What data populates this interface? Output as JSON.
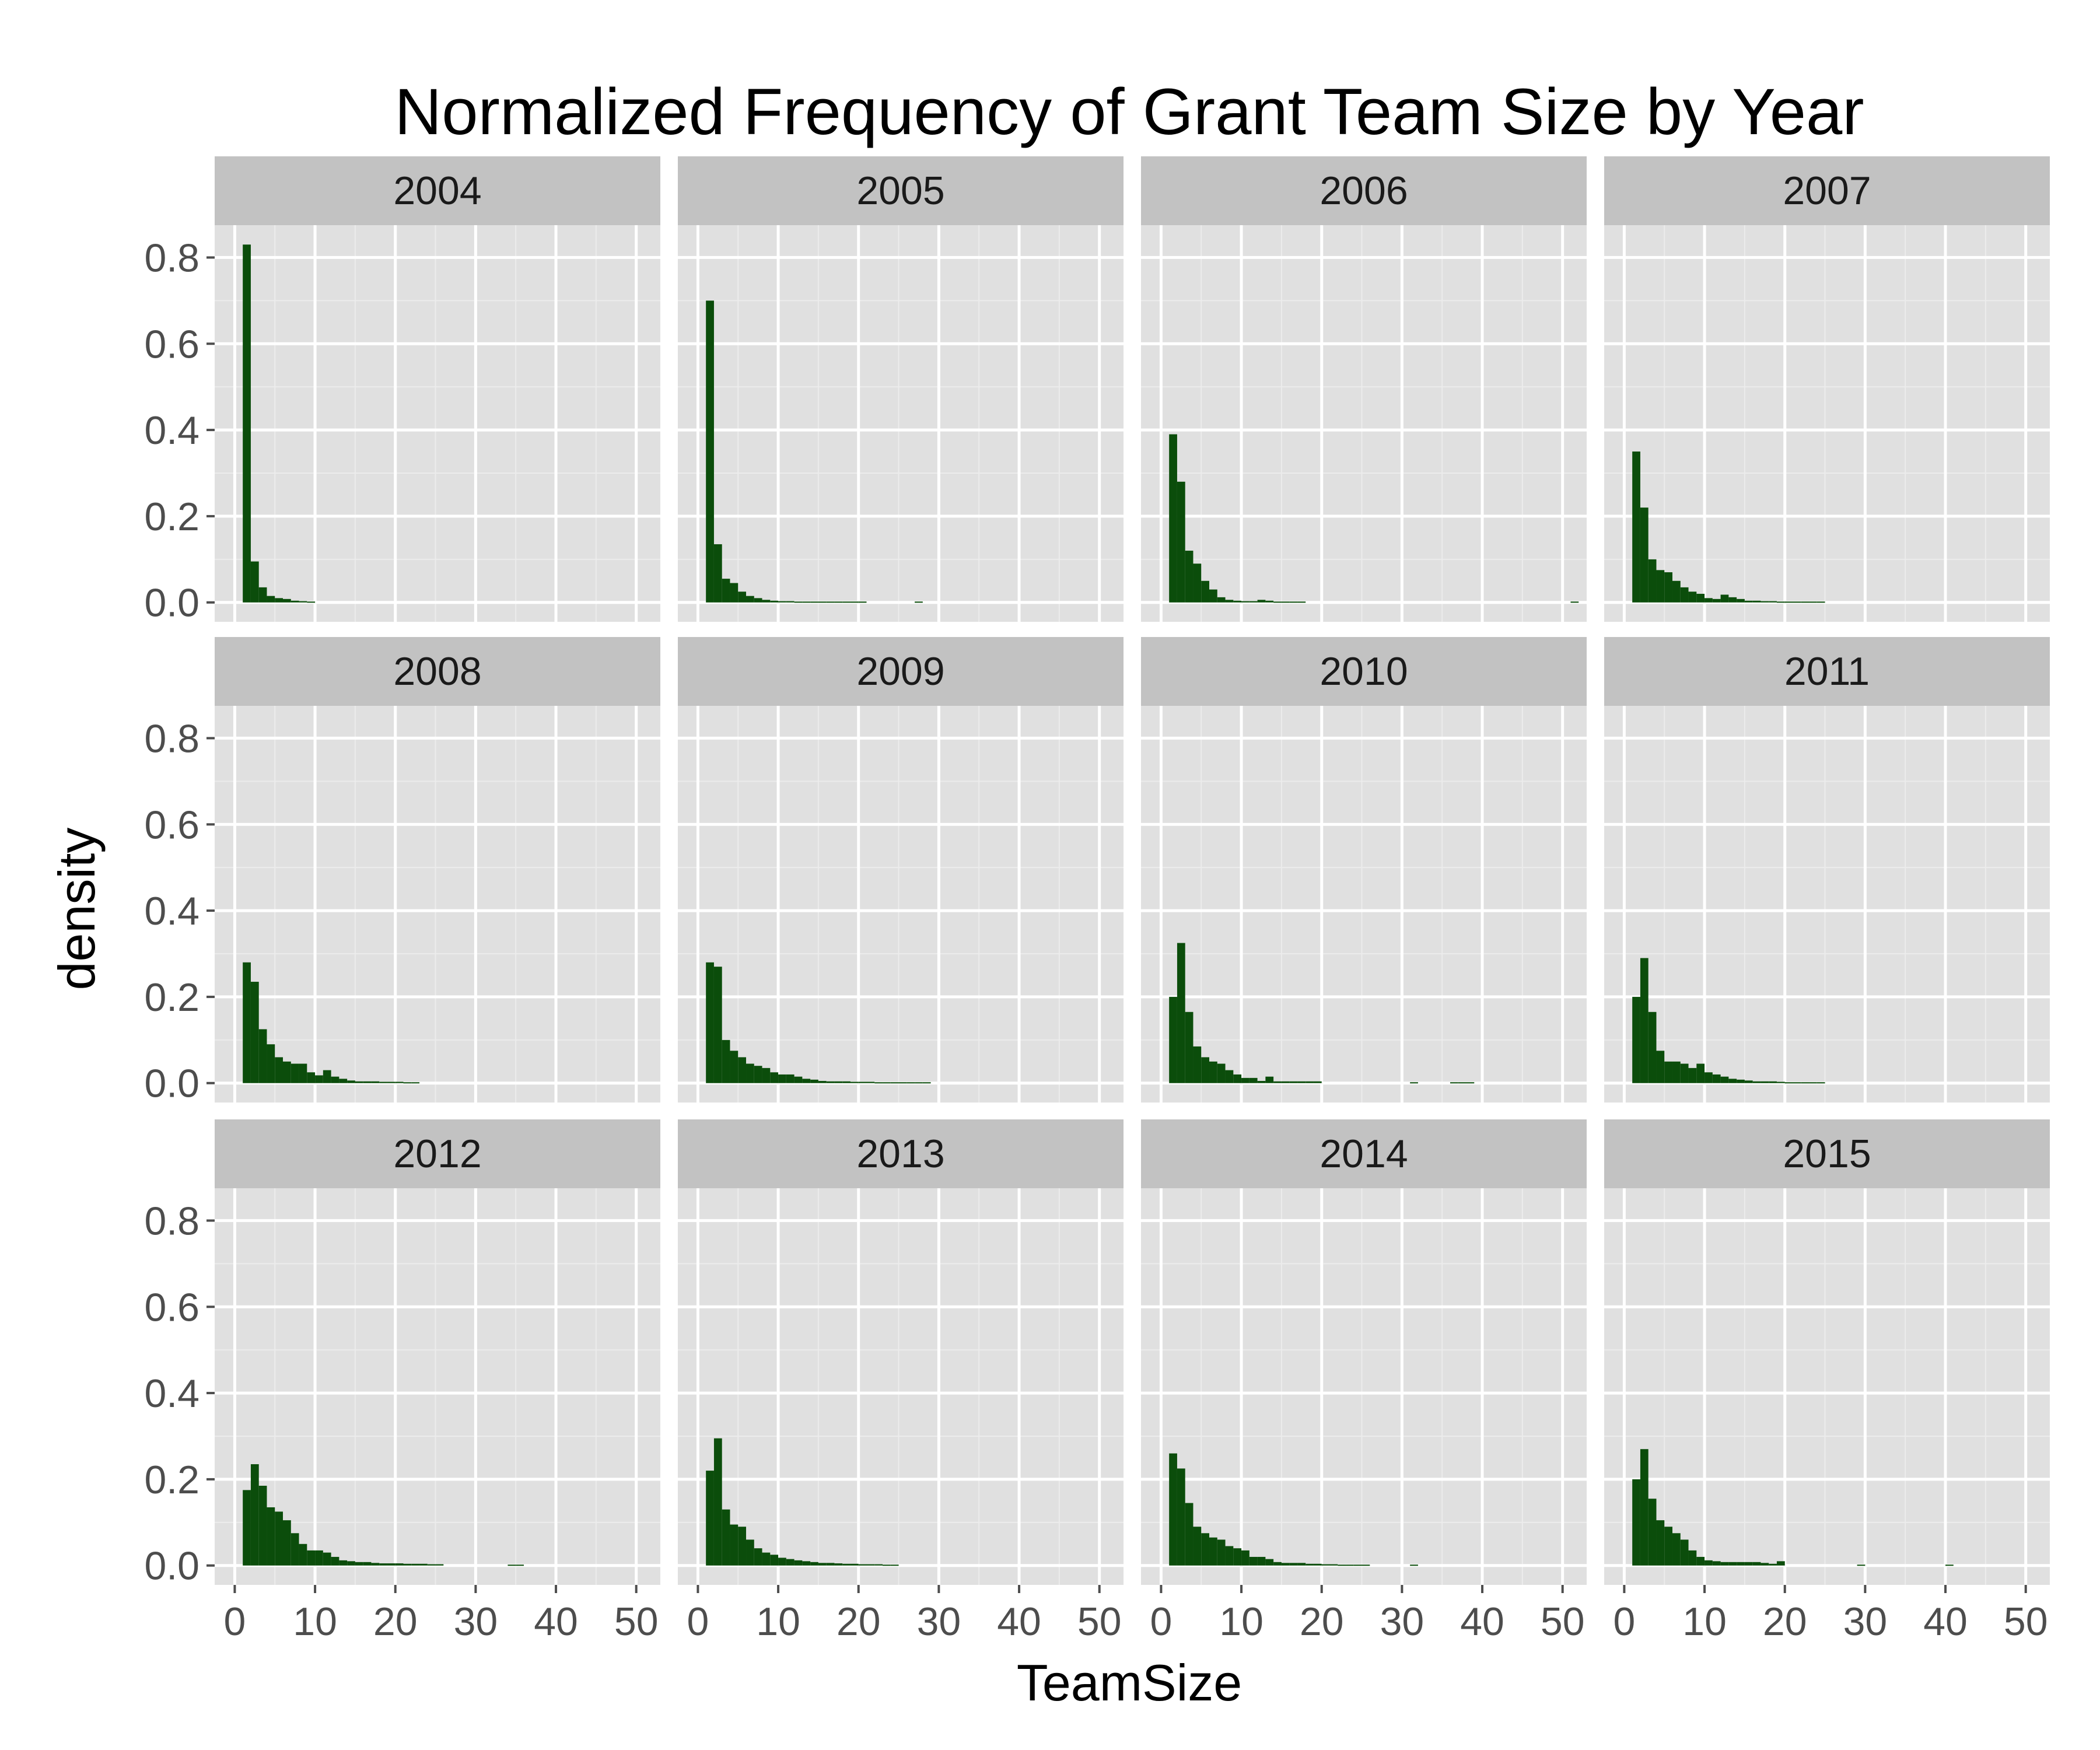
{
  "chart_data": {
    "type": "bar",
    "title": "Normalized Frequency of Grant Team Size by Year",
    "xlabel": "TeamSize",
    "ylabel": "density",
    "xlim": [
      -2.5,
      53
    ],
    "ylim": [
      -0.045,
      0.875
    ],
    "x_ticks": [
      0,
      10,
      20,
      30,
      40,
      50
    ],
    "y_ticks": [
      0.0,
      0.2,
      0.4,
      0.6,
      0.8
    ],
    "y_tick_labels": [
      "0.0",
      "0.2",
      "0.4",
      "0.6",
      "0.8"
    ],
    "bin_width": 1,
    "bin_start": 1,
    "grid": true,
    "panel_background": "#e0e0e0",
    "strip_background": "#c2c2c2",
    "bar_color": "#0b4d0b",
    "layout": {
      "rows": 3,
      "cols": 4
    },
    "panels": [
      {
        "year": "2004",
        "values": [
          0.83,
          0.095,
          0.035,
          0.015,
          0.01,
          0.008,
          0.004,
          0.003,
          0.002
        ]
      },
      {
        "year": "2005",
        "values": [
          0.7,
          0.135,
          0.055,
          0.045,
          0.025,
          0.015,
          0.01,
          0.006,
          0.004,
          0.003,
          0.003,
          0.002,
          0.002,
          0.002,
          0.002,
          0.002,
          0.002,
          0.002,
          0.002,
          0.002,
          0.0,
          0.0,
          0.0,
          0.0,
          0.0,
          0.0,
          0.002
        ]
      },
      {
        "year": "2006",
        "values": [
          0.39,
          0.28,
          0.12,
          0.09,
          0.05,
          0.03,
          0.012,
          0.006,
          0.004,
          0.003,
          0.003,
          0.006,
          0.004,
          0.002,
          0.002,
          0.002,
          0.002,
          0.0,
          0.0,
          0.0,
          0.0,
          0.0,
          0.0,
          0.0,
          0.0,
          0.0,
          0.0,
          0.0,
          0.0,
          0.0,
          0.0,
          0.0,
          0.0,
          0.0,
          0.0,
          0.0,
          0.0,
          0.0,
          0.0,
          0.0,
          0.0,
          0.0,
          0.0,
          0.0,
          0.0,
          0.0,
          0.0,
          0.0,
          0.0,
          0.0,
          0.002
        ]
      },
      {
        "year": "2007",
        "values": [
          0.35,
          0.22,
          0.1,
          0.075,
          0.07,
          0.05,
          0.035,
          0.025,
          0.02,
          0.01,
          0.008,
          0.018,
          0.012,
          0.008,
          0.004,
          0.004,
          0.003,
          0.003,
          0.002,
          0.002,
          0.002,
          0.002,
          0.002,
          0.002
        ]
      },
      {
        "year": "2008",
        "values": [
          0.28,
          0.235,
          0.125,
          0.09,
          0.06,
          0.05,
          0.045,
          0.045,
          0.025,
          0.018,
          0.03,
          0.015,
          0.01,
          0.006,
          0.004,
          0.004,
          0.004,
          0.003,
          0.003,
          0.003,
          0.002,
          0.002
        ]
      },
      {
        "year": "2009",
        "values": [
          0.28,
          0.27,
          0.1,
          0.075,
          0.06,
          0.045,
          0.04,
          0.035,
          0.025,
          0.02,
          0.02,
          0.015,
          0.01,
          0.008,
          0.005,
          0.004,
          0.004,
          0.004,
          0.003,
          0.003,
          0.003,
          0.002,
          0.002,
          0.002,
          0.002,
          0.002,
          0.002,
          0.002
        ]
      },
      {
        "year": "2010",
        "values": [
          0.2,
          0.325,
          0.165,
          0.085,
          0.06,
          0.05,
          0.045,
          0.03,
          0.02,
          0.012,
          0.012,
          0.005,
          0.015,
          0.004,
          0.004,
          0.004,
          0.004,
          0.004,
          0.004,
          0.0,
          0.0,
          0.0,
          0.0,
          0.0,
          0.0,
          0.0,
          0.0,
          0.0,
          0.0,
          0.0,
          0.002,
          0.0,
          0.0,
          0.0,
          0.0,
          0.002,
          0.002,
          0.002
        ]
      },
      {
        "year": "2011",
        "values": [
          0.2,
          0.29,
          0.165,
          0.075,
          0.05,
          0.05,
          0.045,
          0.035,
          0.045,
          0.025,
          0.02,
          0.015,
          0.01,
          0.008,
          0.006,
          0.004,
          0.004,
          0.004,
          0.003,
          0.002,
          0.002,
          0.002,
          0.002,
          0.002
        ]
      },
      {
        "year": "2012",
        "values": [
          0.175,
          0.235,
          0.185,
          0.135,
          0.125,
          0.105,
          0.075,
          0.05,
          0.035,
          0.035,
          0.03,
          0.02,
          0.012,
          0.01,
          0.008,
          0.008,
          0.006,
          0.005,
          0.005,
          0.005,
          0.004,
          0.004,
          0.004,
          0.003,
          0.003,
          0.0,
          0.0,
          0.0,
          0.0,
          0.0,
          0.0,
          0.0,
          0.0,
          0.002,
          0.002
        ]
      },
      {
        "year": "2013",
        "values": [
          0.22,
          0.295,
          0.13,
          0.095,
          0.09,
          0.06,
          0.04,
          0.03,
          0.025,
          0.018,
          0.015,
          0.012,
          0.01,
          0.008,
          0.006,
          0.006,
          0.005,
          0.004,
          0.004,
          0.003,
          0.003,
          0.003,
          0.002,
          0.002
        ]
      },
      {
        "year": "2014",
        "values": [
          0.26,
          0.225,
          0.145,
          0.09,
          0.075,
          0.065,
          0.06,
          0.045,
          0.04,
          0.035,
          0.02,
          0.02,
          0.015,
          0.008,
          0.006,
          0.006,
          0.006,
          0.004,
          0.004,
          0.003,
          0.003,
          0.002,
          0.002,
          0.002,
          0.002,
          0.0,
          0.0,
          0.0,
          0.0,
          0.0,
          0.002
        ]
      },
      {
        "year": "2015",
        "values": [
          0.2,
          0.27,
          0.155,
          0.105,
          0.09,
          0.075,
          0.06,
          0.035,
          0.02,
          0.012,
          0.01,
          0.008,
          0.008,
          0.008,
          0.008,
          0.008,
          0.006,
          0.004,
          0.01,
          0.0,
          0.0,
          0.0,
          0.0,
          0.0,
          0.0,
          0.0,
          0.0,
          0.0,
          0.002,
          0.0,
          0.0,
          0.0,
          0.0,
          0.0,
          0.0,
          0.0,
          0.0,
          0.0,
          0.0,
          0.002
        ]
      }
    ]
  }
}
